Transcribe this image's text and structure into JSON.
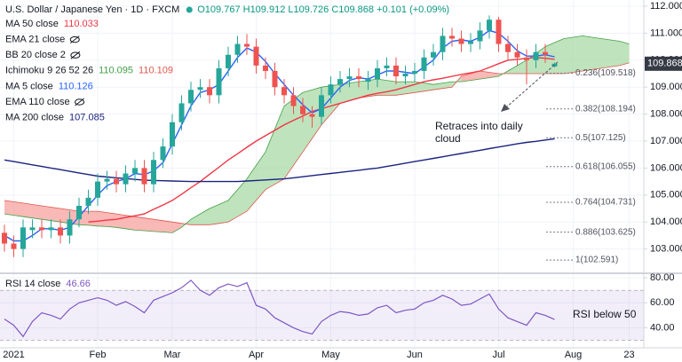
{
  "chart_data": [
    {
      "type": "candlestick",
      "title": "U.S. Dollar / Japanese Yen · 1D · FXCM",
      "ohlc": "O109.767 H109.912 L109.726 C109.868 +0.101 (+0.09%)",
      "categories": [
        null,
        "2021",
        null,
        null,
        null,
        null,
        null,
        null,
        null,
        null,
        "Feb",
        null,
        null,
        null,
        null,
        null,
        null,
        null,
        "Mar",
        null,
        null,
        null,
        null,
        null,
        null,
        null,
        null,
        "Apr",
        null,
        null,
        null,
        null,
        null,
        null,
        null,
        "May",
        null,
        null,
        null,
        null,
        null,
        null,
        null,
        null,
        "Jun",
        null,
        null,
        null,
        null,
        null,
        null,
        null,
        null,
        "Jul",
        null,
        null,
        null,
        null,
        null,
        null,
        null,
        "Aug",
        null,
        null,
        null,
        null,
        null,
        "23",
        null,
        null
      ],
      "open": [
        103.6,
        103.2,
        103.0,
        103.7,
        103.8,
        103.7,
        103.8,
        103.5,
        104.1,
        104.6,
        104.9,
        105.5,
        105.6,
        105.4,
        105.8,
        106.0,
        105.4,
        106.3,
        106.8,
        107.7,
        108.4,
        108.9,
        109.0,
        108.7,
        109.7,
        110.2,
        110.6,
        110.5,
        109.8,
        109.6,
        109.0,
        108.7,
        108.3,
        108.0,
        107.9,
        108.7,
        109.1,
        109.3,
        109.4,
        109.2,
        109.3,
        109.7,
        109.8,
        109.4,
        109.5,
        109.6,
        110.1,
        110.3,
        110.9,
        110.8,
        110.6,
        110.7,
        111.1,
        111.5,
        110.6,
        110.3,
        110.1,
        110.0,
        110.3,
        109.767,
        null,
        null,
        null,
        null,
        null,
        null,
        null,
        null,
        null,
        null
      ],
      "high": [
        103.9,
        103.5,
        104.1,
        104.1,
        104.1,
        104.1,
        104.1,
        104.4,
        104.9,
        105.2,
        105.8,
        105.9,
        105.9,
        106.1,
        106.3,
        106.3,
        106.6,
        107.1,
        108.0,
        108.7,
        109.2,
        109.3,
        109.3,
        110.0,
        110.5,
        110.9,
        110.97,
        110.8,
        110.1,
        109.9,
        109.3,
        109.0,
        108.6,
        108.3,
        109.0,
        109.4,
        109.6,
        109.7,
        109.7,
        109.6,
        110.0,
        110.1,
        110.1,
        109.8,
        109.9,
        110.4,
        110.6,
        111.2,
        111.2,
        111.1,
        111.0,
        111.4,
        111.66,
        111.6,
        110.9,
        110.6,
        110.4,
        110.6,
        110.6,
        109.912,
        null,
        null,
        null,
        null,
        null,
        null,
        null,
        null,
        null,
        null
      ],
      "low": [
        102.9,
        102.7,
        102.7,
        103.4,
        103.4,
        103.4,
        103.2,
        103.2,
        103.8,
        104.3,
        104.6,
        105.2,
        105.1,
        105.1,
        105.5,
        105.1,
        105.1,
        106.0,
        106.5,
        107.4,
        108.1,
        108.6,
        108.4,
        108.4,
        109.4,
        109.9,
        110.2,
        109.5,
        109.3,
        108.7,
        108.4,
        108.0,
        107.7,
        107.5,
        107.6,
        108.4,
        108.8,
        109.0,
        109.0,
        108.9,
        109.0,
        109.4,
        109.1,
        109.1,
        109.2,
        109.3,
        109.8,
        110.0,
        110.5,
        110.3,
        110.3,
        110.4,
        110.8,
        110.3,
        110.0,
        109.8,
        109.1,
        109.7,
        109.9,
        109.726,
        null,
        null,
        null,
        null,
        null,
        null,
        null,
        null,
        null,
        null
      ],
      "close": [
        103.2,
        103.0,
        103.8,
        103.8,
        103.7,
        103.8,
        103.5,
        104.1,
        104.6,
        104.9,
        105.5,
        105.6,
        105.4,
        105.8,
        106.0,
        105.4,
        106.3,
        106.8,
        107.7,
        108.4,
        108.9,
        109.0,
        108.7,
        109.7,
        110.2,
        110.6,
        110.5,
        109.8,
        109.6,
        109.0,
        108.7,
        108.3,
        108.0,
        107.9,
        108.7,
        109.1,
        109.3,
        109.4,
        109.3,
        109.3,
        109.7,
        109.8,
        109.4,
        109.5,
        109.6,
        110.1,
        110.3,
        110.9,
        110.8,
        110.6,
        110.7,
        111.1,
        111.5,
        110.6,
        110.3,
        110.1,
        110.0,
        110.3,
        110.2,
        109.868,
        null,
        null,
        null,
        null,
        null,
        null,
        null,
        null,
        null,
        null
      ],
      "up_color": "#26a69a",
      "down_color": "#ef5350",
      "indicators": [
        {
          "name": "MA 50 close",
          "color": "#f23645",
          "values": [
            null,
            null,
            null,
            null,
            null,
            null,
            null,
            null,
            null,
            104.0,
            104.03,
            104.07,
            104.1,
            104.17,
            104.23,
            104.3,
            104.47,
            104.63,
            104.8,
            105.03,
            105.27,
            105.5,
            105.77,
            106.03,
            106.3,
            106.53,
            106.77,
            107.0,
            107.2,
            107.4,
            107.6,
            107.77,
            107.93,
            108.1,
            108.2,
            108.3,
            108.4,
            108.5,
            108.6,
            108.7,
            108.77,
            108.83,
            108.9,
            109.0,
            109.1,
            109.2,
            109.27,
            109.33,
            109.4,
            109.47,
            109.53,
            109.6,
            109.73,
            109.87,
            110.0,
            110.03,
            110.07,
            110.1,
            110.07,
            110.033,
            null,
            null,
            null,
            null,
            null,
            null,
            null,
            null,
            null,
            null
          ]
        },
        {
          "name": "EMA 21 close",
          "hidden": true
        },
        {
          "name": "BB 20 close 2",
          "hidden": true
        },
        {
          "name": "Ichimoku 9 26 52 26",
          "readout": [
            110.095,
            110.109
          ],
          "span_a_color": "#43a047",
          "span_b_color": "#e0574f",
          "up_fill": "#a9d9a6",
          "down_fill": "#f7a29d",
          "span_a": [
            104.3,
            104.25,
            104.2,
            104.15,
            104.1,
            104.05,
            104.0,
            103.95,
            103.9,
            103.88,
            103.85,
            103.83,
            103.8,
            103.75,
            103.7,
            103.68,
            103.65,
            103.63,
            103.6,
            103.8,
            104.1,
            104.3,
            104.5,
            104.65,
            104.8,
            105.2,
            105.6,
            106.1,
            106.6,
            107.45,
            108.3,
            108.55,
            108.8,
            108.9,
            109.0,
            109.05,
            109.1,
            109.15,
            109.2,
            109.25,
            109.3,
            109.25,
            109.2,
            109.2,
            109.2,
            109.15,
            109.1,
            109.15,
            109.2,
            109.2,
            109.25,
            109.3,
            109.35,
            109.4,
            109.6,
            109.8,
            110.0,
            110.25,
            110.5,
            110.65,
            110.8,
            110.85,
            110.9,
            110.85,
            110.8,
            110.75,
            110.7,
            110.6,
            null,
            null
          ],
          "span_b": [
            104.8,
            104.75,
            104.7,
            104.65,
            104.6,
            104.55,
            104.5,
            104.45,
            104.4,
            104.4,
            104.4,
            104.35,
            104.3,
            104.25,
            104.2,
            104.15,
            104.1,
            104.05,
            104.0,
            103.95,
            103.9,
            103.9,
            103.9,
            103.95,
            104.0,
            104.2,
            104.4,
            104.8,
            105.2,
            105.4,
            105.6,
            106.1,
            106.6,
            107.1,
            107.6,
            108.0,
            108.4,
            108.5,
            108.6,
            108.65,
            108.7,
            108.7,
            108.7,
            108.75,
            108.8,
            108.85,
            108.9,
            108.95,
            109.0,
            109.4,
            109.5,
            109.6,
            109.55,
            109.5,
            109.5,
            109.5,
            109.5,
            109.5,
            109.5,
            109.5,
            109.5,
            109.55,
            109.6,
            109.65,
            109.7,
            109.75,
            109.8,
            109.9,
            null,
            null
          ]
        },
        {
          "name": "MA 5 close",
          "color": "#2962ff",
          "values": [
            103.5,
            103.3,
            103.3,
            103.5,
            103.75,
            103.75,
            103.7,
            103.8,
            104.2,
            104.6,
            105.0,
            105.35,
            105.5,
            105.6,
            105.8,
            105.75,
            105.9,
            106.2,
            106.9,
            107.6,
            108.3,
            108.8,
            108.9,
            109.1,
            109.6,
            110.1,
            110.45,
            110.3,
            109.95,
            109.5,
            109.1,
            108.7,
            108.35,
            108.05,
            108.2,
            108.6,
            109.0,
            109.25,
            109.35,
            109.3,
            109.45,
            109.6,
            109.6,
            109.55,
            109.5,
            109.75,
            110.0,
            110.45,
            110.7,
            110.75,
            110.7,
            110.85,
            111.1,
            111.0,
            110.7,
            110.35,
            110.15,
            110.15,
            110.2,
            110.126,
            null,
            null,
            null,
            null,
            null,
            null,
            null,
            null,
            null,
            null
          ]
        },
        {
          "name": "EMA 110 close",
          "hidden": true
        },
        {
          "name": "MA 200 close",
          "color": "#1a237e",
          "values": [
            106.3,
            106.24,
            106.18,
            106.12,
            106.06,
            106.0,
            105.94,
            105.88,
            105.82,
            105.76,
            105.7,
            105.67,
            105.64,
            105.61,
            105.58,
            105.55,
            105.54,
            105.53,
            105.52,
            105.51,
            105.5,
            105.5,
            105.5,
            105.5,
            105.5,
            105.5,
            105.52,
            105.54,
            105.56,
            105.58,
            105.6,
            105.64,
            105.68,
            105.72,
            105.76,
            105.8,
            105.84,
            105.88,
            105.92,
            105.96,
            106.0,
            106.06,
            106.12,
            106.18,
            106.24,
            106.3,
            106.36,
            106.42,
            106.48,
            106.54,
            106.6,
            106.66,
            106.72,
            106.78,
            106.84,
            106.9,
            106.95,
            106.99,
            107.04,
            107.085,
            null,
            null,
            null,
            null,
            null,
            null,
            null,
            null,
            null,
            null
          ]
        }
      ],
      "fib_levels": [
        {
          "label": "0.236(109.518)",
          "value": 109.518
        },
        {
          "label": "0.382(108.194)",
          "value": 108.194
        },
        {
          "label": "0.5(107.125)",
          "value": 107.125
        },
        {
          "label": "0.618(106.055)",
          "value": 106.055
        },
        {
          "label": "0.764(104.731)",
          "value": 104.731
        },
        {
          "label": "0.886(103.625)",
          "value": 103.625
        },
        {
          "label": "1(102.591)",
          "value": 102.591
        }
      ],
      "annotation": [
        "Retraces into daily",
        "cloud"
      ],
      "ylim": [
        102.1,
        112.23
      ],
      "yticks": [
        {
          "value": 112,
          "label": "112.000"
        },
        {
          "value": 111,
          "label": "111.000"
        },
        {
          "value": 110,
          "label": "110.000"
        },
        {
          "value": 109,
          "label": "109.000"
        },
        {
          "value": 108,
          "label": "108.000"
        },
        {
          "value": 107,
          "label": "107.000"
        },
        {
          "value": 106,
          "label": "106.000"
        },
        {
          "value": 105,
          "label": "105.000"
        },
        {
          "value": 104,
          "label": "104.000"
        },
        {
          "value": 103,
          "label": "103.000"
        }
      ],
      "grid": true
    },
    {
      "type": "line",
      "title": "RSI 14 close",
      "color": "#7e57c2",
      "values": [
        47,
        42,
        33,
        45,
        52,
        50,
        47,
        55,
        60,
        62,
        64,
        62,
        58,
        61,
        57,
        52,
        62,
        65,
        68,
        72,
        78,
        70,
        66,
        72,
        75,
        73,
        76,
        58,
        55,
        48,
        44,
        40,
        37,
        35,
        45,
        50,
        53,
        52,
        50,
        51,
        56,
        58,
        52,
        54,
        55,
        60,
        62,
        66,
        63,
        58,
        59,
        63,
        67,
        55,
        48,
        45,
        42,
        52,
        50,
        46.66,
        null,
        null,
        null,
        null,
        null,
        null,
        null,
        null,
        null,
        null
      ],
      "band": [
        30,
        70
      ],
      "band_color": "#7e57c2",
      "annotation": "RSI below 50",
      "ylim": [
        24,
        83.6
      ],
      "yticks": [
        {
          "value": 80,
          "label": "80.00"
        },
        {
          "value": 60,
          "label": "60.00"
        },
        {
          "value": 40,
          "label": "40.00"
        }
      ],
      "grid": true
    }
  ]
}
